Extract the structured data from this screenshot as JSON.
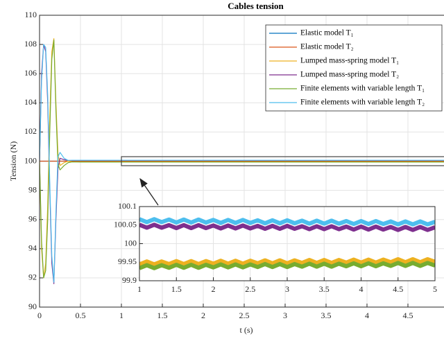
{
  "chart_data": [
    {
      "type": "line",
      "title": "Cables tension",
      "xlabel": "t (s)",
      "ylabel": "Tension (N)",
      "x": [
        0,
        0.025,
        0.05,
        0.075,
        0.1,
        0.125,
        0.15,
        0.175,
        0.2,
        0.225,
        0.25,
        0.3,
        0.35,
        0.4,
        0.5,
        1,
        1.5,
        2,
        2.5,
        3,
        3.5,
        4,
        4.5,
        5
      ],
      "series": [
        {
          "name": "Elastic model T₁",
          "color": "#0072BD",
          "values": [
            100,
            100,
            100,
            100,
            100,
            100,
            100,
            100,
            100,
            100,
            100,
            100,
            100,
            100,
            100,
            100,
            100,
            100,
            100,
            100,
            100,
            100,
            100,
            100
          ]
        },
        {
          "name": "Elastic model T₂",
          "color": "#D95319",
          "values": [
            100,
            100,
            100,
            100,
            100,
            100,
            100,
            100,
            100,
            100,
            100,
            100,
            100,
            100,
            100,
            100,
            100,
            100,
            100,
            100,
            100,
            100,
            100,
            100
          ]
        },
        {
          "name": "Lumped mass-spring model T₁",
          "color": "#EDB120",
          "values": [
            100,
            94,
            92,
            93,
            97,
            103,
            107.5,
            108.4,
            104,
            100.5,
            99.7,
            99.9,
            100,
            99.95,
            99.95,
            99.95,
            99.95,
            99.95,
            99.95,
            99.95,
            99.95,
            99.95,
            99.95,
            99.95
          ]
        },
        {
          "name": "Lumped mass-spring model T₂",
          "color": "#7E2F8E",
          "values": [
            100,
            106,
            108,
            107.5,
            104,
            98,
            93,
            91.6,
            96,
            99.5,
            100.2,
            100.1,
            100.05,
            100.05,
            100.05,
            100.05,
            100.05,
            100.05,
            100.05,
            100.05,
            100.05,
            100.05,
            100.05,
            100.05
          ]
        },
        {
          "name": "Finite elements with variable length T₁",
          "color": "#77AC30",
          "values": [
            100,
            94.5,
            92,
            92.5,
            96,
            102,
            107,
            108.3,
            103.5,
            99.8,
            99.4,
            99.7,
            99.9,
            99.95,
            99.94,
            99.94,
            99.94,
            99.94,
            99.94,
            99.94,
            99.94,
            99.94,
            99.94,
            99.94
          ]
        },
        {
          "name": "Finite elements with variable length T₂",
          "color": "#4DBEEE",
          "values": [
            100,
            105.5,
            108,
            107.8,
            104.5,
            98.5,
            93.5,
            91.7,
            96.5,
            100.3,
            100.6,
            100.2,
            100.05,
            100.06,
            100.06,
            100.06,
            100.06,
            100.06,
            100.06,
            100.06,
            100.06,
            100.06,
            100.06,
            100.06
          ]
        }
      ],
      "xlim": [
        0,
        5
      ],
      "ylim": [
        90,
        110
      ],
      "xticks": [
        0,
        0.5,
        1,
        1.5,
        2,
        2.5,
        3,
        3.5,
        4,
        4.5
      ],
      "yticks": [
        90,
        92,
        94,
        96,
        98,
        100,
        102,
        104,
        106,
        108,
        110
      ],
      "grid": true,
      "legend": "upper right"
    },
    {
      "type": "line",
      "x": [
        1,
        1.1,
        1.2,
        1.3,
        1.4,
        1.5,
        1.6,
        1.7,
        1.8,
        1.9,
        2,
        2.1,
        2.2,
        2.3,
        2.4,
        2.5,
        2.6,
        2.7,
        2.8,
        2.9,
        3,
        3.1,
        3.2,
        3.3,
        3.4,
        3.5,
        3.6,
        3.7,
        3.8,
        3.9,
        4,
        4.1,
        4.2,
        4.3,
        4.4,
        4.5,
        4.6,
        4.7,
        4.8,
        4.9,
        5
      ],
      "series": [
        {
          "color": "#4DBEEE",
          "values": [
            100.066,
            100.058,
            100.066,
            100.058,
            100.065,
            100.057,
            100.065,
            100.057,
            100.065,
            100.057,
            100.064,
            100.056,
            100.064,
            100.056,
            100.064,
            100.056,
            100.063,
            100.055,
            100.063,
            100.055,
            100.063,
            100.055,
            100.062,
            100.054,
            100.062,
            100.054,
            100.062,
            100.054,
            100.061,
            100.053,
            100.061,
            100.053,
            100.061,
            100.053,
            100.06,
            100.052,
            100.06,
            100.052,
            100.06,
            100.052,
            100.059
          ]
        },
        {
          "color": "#7E2F8E",
          "values": [
            100.051,
            100.043,
            100.051,
            100.043,
            100.05,
            100.042,
            100.05,
            100.042,
            100.05,
            100.042,
            100.049,
            100.041,
            100.049,
            100.041,
            100.049,
            100.041,
            100.048,
            100.04,
            100.048,
            100.04,
            100.048,
            100.04,
            100.047,
            100.039,
            100.047,
            100.039,
            100.047,
            100.039,
            100.046,
            100.038,
            100.046,
            100.038,
            100.046,
            100.038,
            100.045,
            100.037,
            100.045,
            100.037,
            100.045,
            100.037,
            100.044
          ]
        },
        {
          "color": "#EDB120",
          "values": [
            99.944,
            99.952,
            99.944,
            99.952,
            99.945,
            99.953,
            99.945,
            99.953,
            99.945,
            99.953,
            99.946,
            99.954,
            99.946,
            99.954,
            99.946,
            99.954,
            99.947,
            99.955,
            99.947,
            99.955,
            99.947,
            99.955,
            99.948,
            99.956,
            99.948,
            99.956,
            99.948,
            99.956,
            99.949,
            99.957,
            99.949,
            99.957,
            99.949,
            99.957,
            99.95,
            99.958,
            99.95,
            99.958,
            99.95,
            99.958,
            99.951
          ]
        },
        {
          "color": "#77AC30",
          "values": [
            99.934,
            99.942,
            99.934,
            99.942,
            99.935,
            99.943,
            99.935,
            99.943,
            99.935,
            99.943,
            99.936,
            99.944,
            99.936,
            99.944,
            99.936,
            99.944,
            99.937,
            99.945,
            99.937,
            99.945,
            99.937,
            99.945,
            99.938,
            99.946,
            99.938,
            99.946,
            99.938,
            99.946,
            99.939,
            99.947,
            99.939,
            99.947,
            99.939,
            99.947,
            99.94,
            99.948,
            99.94,
            99.948,
            99.94,
            99.948,
            99.941
          ]
        }
      ],
      "xlim": [
        1,
        5
      ],
      "ylim": [
        99.9,
        100.1
      ],
      "xticks": [
        1,
        1.5,
        2,
        2.5,
        3,
        3.5,
        4,
        4.5,
        5
      ],
      "yticks": [
        99.9,
        99.95,
        100,
        100.05,
        100.1
      ],
      "grid": true
    }
  ]
}
